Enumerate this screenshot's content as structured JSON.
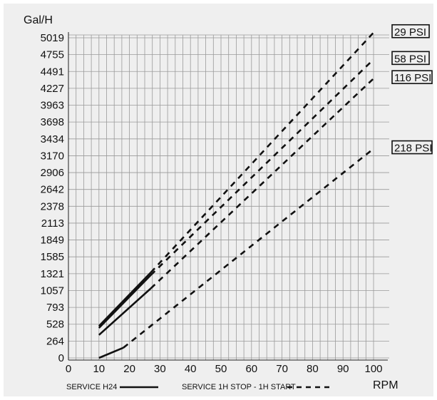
{
  "chart_data": {
    "type": "line",
    "ylabel": "Gal/H",
    "xlabel": "RPM",
    "xlim": [
      0,
      100
    ],
    "ylim": [
      0,
      5019
    ],
    "x_ticks": [
      0,
      10,
      20,
      30,
      40,
      50,
      60,
      70,
      80,
      90,
      100
    ],
    "y_ticks": [
      0,
      264,
      528,
      793,
      1057,
      1321,
      1585,
      1849,
      2113,
      2378,
      2642,
      2906,
      3170,
      3434,
      3698,
      3963,
      4227,
      4491,
      4755,
      5019
    ],
    "grid": true,
    "legend": [
      {
        "label": "SERVICE H24",
        "style": "solid"
      },
      {
        "label": "SERVICE 1H STOP - 1H START",
        "style": "dashed"
      }
    ],
    "series": [
      {
        "name": "29 PSI",
        "solid": [
          [
            10,
            500
          ],
          [
            27,
            1340
          ]
        ],
        "dashed": [
          [
            27,
            1340
          ],
          [
            100,
            5100
          ]
        ]
      },
      {
        "name": "58 PSI",
        "solid": [
          [
            10,
            470
          ],
          [
            27,
            1300
          ]
        ],
        "dashed": [
          [
            27,
            1300
          ],
          [
            100,
            4680
          ]
        ]
      },
      {
        "name": "116 PSI",
        "solid": [
          [
            10,
            360
          ],
          [
            27,
            1090
          ]
        ],
        "dashed": [
          [
            27,
            1090
          ],
          [
            100,
            4380
          ]
        ]
      },
      {
        "name": "218 PSI",
        "solid": [
          [
            10,
            0
          ],
          [
            18,
            160
          ]
        ],
        "dashed": [
          [
            18,
            160
          ],
          [
            100,
            3280
          ]
        ]
      }
    ]
  }
}
